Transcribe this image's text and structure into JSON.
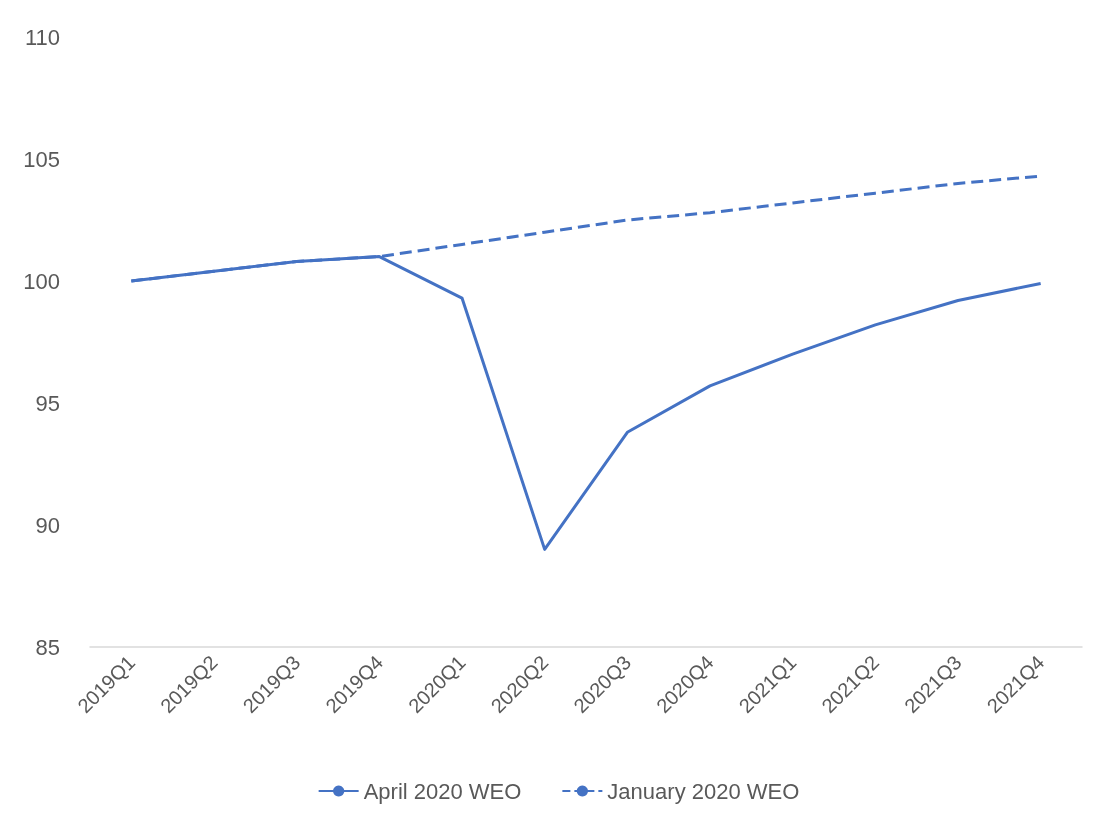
{
  "chart_data": {
    "type": "line",
    "categories": [
      "2019Q1",
      "2019Q2",
      "2019Q3",
      "2019Q4",
      "2020Q1",
      "2020Q2",
      "2020Q3",
      "2020Q4",
      "2021Q1",
      "2021Q2",
      "2021Q3",
      "2021Q4"
    ],
    "series": [
      {
        "name": "April 2020 WEO",
        "color": "#4472c4",
        "line_style": "solid",
        "values": [
          100,
          100.4,
          100.8,
          101.0,
          99.3,
          89.0,
          93.8,
          95.7,
          97.0,
          98.2,
          99.2,
          99.9
        ]
      },
      {
        "name": "January 2020 WEO",
        "color": "#4472c4",
        "line_style": "dashed",
        "values": [
          100,
          100.4,
          100.8,
          101.0,
          101.5,
          102.0,
          102.5,
          102.8,
          103.2,
          103.6,
          104.0,
          104.3
        ]
      }
    ],
    "ylim": [
      85,
      110
    ],
    "yticks": [
      85,
      90,
      95,
      100,
      105,
      110
    ],
    "grid": false,
    "legend": "bottom",
    "marker": "none"
  }
}
